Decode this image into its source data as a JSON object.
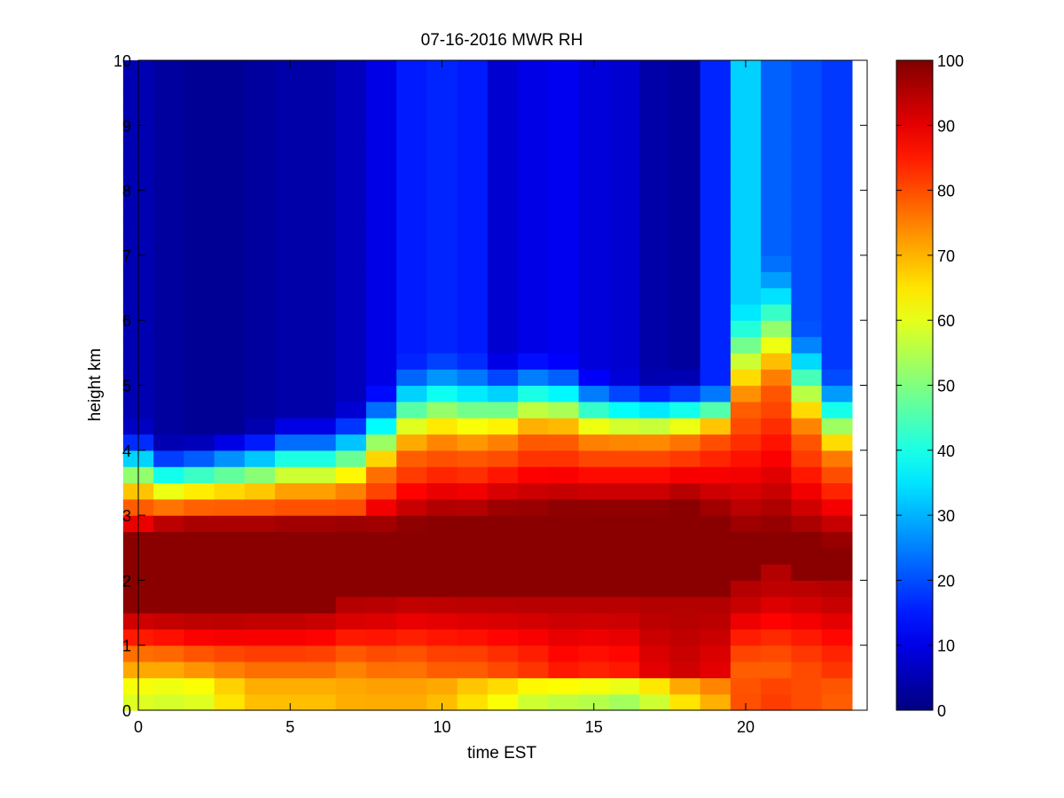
{
  "chart_data": {
    "type": "heatmap",
    "title": "07-16-2016 MWR RH",
    "xlabel": "time EST",
    "ylabel": "height km",
    "xlim": [
      0,
      24
    ],
    "ylim": [
      0,
      10
    ],
    "xticks": [
      0,
      5,
      10,
      15,
      20
    ],
    "yticks": [
      0,
      1,
      2,
      3,
      4,
      5,
      6,
      7,
      8,
      9,
      10
    ],
    "x_centers": [
      0.5,
      1.5,
      2.5,
      3.5,
      4.5,
      5.5,
      6.5,
      7.5,
      8.5,
      9.5,
      10.5,
      11.5,
      12.5,
      13.5,
      14.5,
      15.5,
      16.5,
      17.5,
      18.5,
      19.5,
      20.5,
      21.5,
      22.5,
      23.5
    ],
    "y_levels_km": [
      0.0,
      0.25,
      0.5,
      0.75,
      1.0,
      1.25,
      1.5,
      1.75,
      2.0,
      2.25,
      2.5,
      2.75,
      3.0,
      3.25,
      3.5,
      3.75,
      4.0,
      4.25,
      4.5,
      4.75,
      5.0,
      5.25,
      5.5,
      5.75,
      6.0,
      6.25,
      6.5,
      6.75,
      7.0,
      7.25,
      7.5,
      7.75,
      8.0,
      8.25,
      8.5,
      8.75,
      9.0,
      9.25,
      9.5,
      9.75
    ],
    "profile_model": {
      "moist_layer_bottom_km": [
        1.6,
        1.55,
        1.5,
        1.5,
        1.55,
        1.55,
        1.6,
        1.7,
        1.75,
        1.85,
        1.85,
        1.8,
        1.8,
        1.8,
        1.8,
        1.8,
        1.8,
        1.7,
        1.65,
        1.7,
        1.95,
        2.15,
        2.1,
        2.0
      ],
      "moist_layer_top_km": [
        2.75,
        2.85,
        2.85,
        2.85,
        2.85,
        2.85,
        2.85,
        2.85,
        2.8,
        2.85,
        2.95,
        2.95,
        3.05,
        3.05,
        3.1,
        3.1,
        3.1,
        3.1,
        3.2,
        3.0,
        2.7,
        2.75,
        2.65,
        2.55
      ],
      "humid_top_km": [
        3.0,
        2.95,
        3.0,
        3.0,
        3.0,
        3.05,
        3.05,
        3.1,
        3.4,
        3.7,
        3.8,
        3.75,
        3.85,
        4.0,
        4.0,
        3.9,
        3.9,
        3.9,
        3.95,
        4.1,
        4.4,
        4.7,
        4.0,
        3.6
      ],
      "transition_depth_km": [
        1.5,
        1.3,
        1.3,
        1.4,
        1.5,
        1.6,
        1.6,
        1.7,
        1.7,
        1.8,
        1.8,
        1.8,
        1.7,
        1.6,
        1.5,
        1.4,
        1.3,
        1.3,
        1.3,
        1.0,
        2.0,
        2.4,
        2.0,
        1.7
      ],
      "upper_rh": [
        5,
        3,
        2,
        2,
        3,
        4,
        4,
        6,
        10,
        15,
        16,
        15,
        8,
        10,
        11,
        9,
        8,
        4,
        3,
        16,
        33,
        22,
        20,
        18
      ],
      "surface_rh": [
        58,
        57,
        58,
        64,
        68,
        68,
        68,
        70,
        70,
        70,
        68,
        64,
        60,
        55,
        53,
        52,
        50,
        54,
        62,
        68,
        80,
        82,
        80,
        78
      ],
      "low_layer_rh": [
        70,
        70,
        72,
        74,
        76,
        76,
        76,
        74,
        76,
        76,
        78,
        78,
        80,
        82,
        85,
        84,
        85,
        90,
        92,
        90,
        78,
        78,
        80,
        82
      ]
    },
    "colorbar": {
      "min": 0,
      "max": 100,
      "ticks": [
        0,
        10,
        20,
        30,
        40,
        50,
        60,
        70,
        80,
        90,
        100
      ],
      "colormap": "jet"
    }
  }
}
